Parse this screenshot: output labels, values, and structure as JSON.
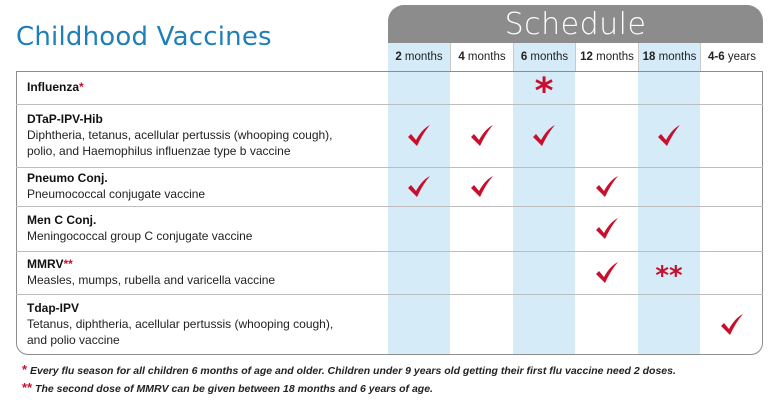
{
  "title": "Childhood Vaccines",
  "schedule_label": "Schedule",
  "columns": [
    {
      "num": "2",
      "unit": "months"
    },
    {
      "num": "4",
      "unit": "months"
    },
    {
      "num": "6",
      "unit": "months"
    },
    {
      "num": "12",
      "unit": "months"
    },
    {
      "num": "18",
      "unit": "months"
    },
    {
      "num": "4-6",
      "unit": "years"
    }
  ],
  "rows": [
    {
      "name": "Influenza",
      "name_star": "*",
      "desc1": "",
      "desc2": "",
      "marks": [
        "",
        "",
        "*",
        "",
        "",
        ""
      ]
    },
    {
      "name": "DTaP-IPV-Hib",
      "name_star": "",
      "desc1": "Diphtheria, tetanus, acellular pertussis (whooping cough),",
      "desc2": "polio, and Haemophilus influenzae type b vaccine",
      "marks": [
        "check",
        "check",
        "check",
        "",
        "check",
        ""
      ]
    },
    {
      "name": "Pneumo Conj.",
      "name_star": "",
      "desc1": "Pneumococcal conjugate vaccine",
      "desc2": "",
      "marks": [
        "check",
        "check",
        "",
        "check",
        "",
        ""
      ]
    },
    {
      "name": "Men C Conj.",
      "name_star": "",
      "desc1": "Meningococcal group C conjugate vaccine",
      "desc2": "",
      "marks": [
        "",
        "",
        "",
        "check",
        "",
        ""
      ]
    },
    {
      "name": "MMRV",
      "name_star": "**",
      "desc1": "Measles, mumps, rubella and varicella vaccine",
      "desc2": "",
      "marks": [
        "",
        "",
        "",
        "check",
        "**",
        ""
      ]
    },
    {
      "name": "Tdap-IPV",
      "name_star": "",
      "desc1": "Tetanus, diphtheria, acellular pertussis (whooping cough),",
      "desc2": "and polio vaccine",
      "marks": [
        "",
        "",
        "",
        "",
        "",
        "check"
      ]
    }
  ],
  "footnotes": [
    {
      "star": "*",
      "text": "Every flu season for all children 6 months of age and older. Children under 9 years old getting their first flu vaccine need 2 doses."
    },
    {
      "star": "**",
      "text": "The second dose of MMRV can be given between 18 months and 6 years of age."
    }
  ],
  "colors": {
    "accent": "#1f7fb8",
    "mark": "#c8102e",
    "band": "#8c8c8c",
    "column_tint": "#d5ecf8"
  },
  "icons": {
    "check": "checkmark-icon",
    "star": "asterisk-icon"
  }
}
